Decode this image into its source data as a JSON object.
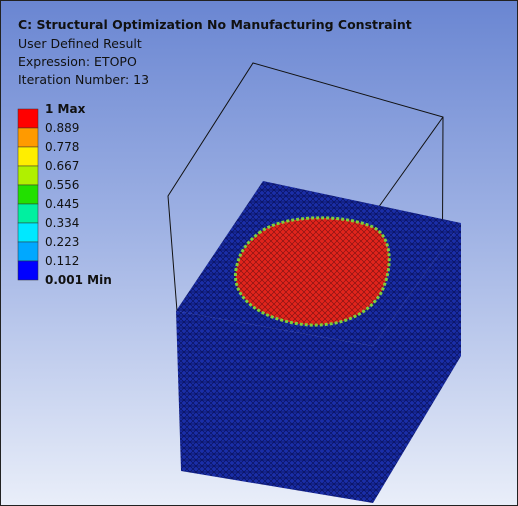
{
  "header": {
    "title": "C: Structural Optimization No Manufacturing Constraint",
    "lines": [
      "User Defined Result",
      "Expression: ETOPO",
      "Iteration Number: 13"
    ]
  },
  "legend": {
    "labels": [
      "1 Max",
      "0.889",
      "0.778",
      "0.667",
      "0.556",
      "0.445",
      "0.334",
      "0.223",
      "0.112",
      "0.001 Min"
    ]
  }
}
